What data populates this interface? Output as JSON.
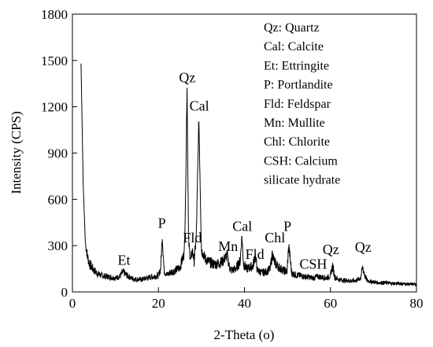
{
  "chart_data": {
    "type": "line",
    "xlabel": "2-Theta (o)",
    "ylabel": "Intensity  (CPS)",
    "xlim": [
      0,
      80
    ],
    "ylim": [
      0,
      1800
    ],
    "x_ticks": [
      "0",
      "20",
      "40",
      "60",
      "80"
    ],
    "y_ticks": [
      "0",
      "300",
      "600",
      "900",
      "1200",
      "1500",
      "1800"
    ],
    "grid": false,
    "legend_placement": "top-right",
    "legend": [
      "Qz:  Quartz",
      "Cal:  Calcite",
      "Et:  Ettringite",
      "P:  Portlandite",
      "Fld:  Feldspar",
      "Mn:  Mullite",
      "Chl:  Chlorite",
      "CSH:  Calcium",
      "silicate hydrate"
    ],
    "annotations": [
      {
        "text": "Et",
        "x": 12,
        "y": 175
      },
      {
        "text": "P",
        "x": 20.8,
        "y": 415
      },
      {
        "text": "Qz",
        "x": 26.7,
        "y": 1360
      },
      {
        "text": "Cal",
        "x": 29.5,
        "y": 1175
      },
      {
        "text": "Fld",
        "x": 27.9,
        "y": 320
      },
      {
        "text": "Mn",
        "x": 36.2,
        "y": 265
      },
      {
        "text": "Cal",
        "x": 39.5,
        "y": 395
      },
      {
        "text": "Fld",
        "x": 42.4,
        "y": 215
      },
      {
        "text": "Chl",
        "x": 47.1,
        "y": 320
      },
      {
        "text": "P",
        "x": 50,
        "y": 395
      },
      {
        "text": "CSH",
        "x": 56,
        "y": 150
      },
      {
        "text": "Qz",
        "x": 60.1,
        "y": 245
      },
      {
        "text": "Qz",
        "x": 67.6,
        "y": 260
      }
    ],
    "series": [
      {
        "x": [
          2,
          2.5,
          3,
          3.5,
          4,
          5,
          6,
          7,
          8,
          9,
          10,
          11,
          11.8,
          12.5,
          14,
          16,
          18,
          20,
          20.5,
          20.9,
          21.3,
          22,
          23,
          24,
          25,
          26,
          26.3,
          26.65,
          27,
          27.5,
          27.9,
          28.3,
          28.8,
          29.4,
          30,
          31,
          32,
          33,
          34,
          35,
          36,
          36.5,
          37,
          38,
          39,
          39.4,
          39.8,
          40.5,
          41,
          42,
          42.5,
          43,
          44,
          45,
          46,
          46.5,
          47,
          48,
          49,
          49.9,
          50.3,
          51,
          52,
          53,
          54,
          55,
          56,
          57,
          58,
          59,
          60,
          60.5,
          61,
          62,
          63,
          64,
          65,
          66,
          67,
          67.5,
          68,
          68.5,
          69,
          70,
          71,
          72,
          73,
          74,
          75,
          76,
          77,
          78,
          79,
          80
        ],
        "y": [
          1480,
          700,
          320,
          230,
          180,
          140,
          115,
          105,
          100,
          95,
          90,
          100,
          130,
          110,
          85,
          80,
          95,
          105,
          150,
          360,
          140,
          110,
          130,
          140,
          160,
          250,
          600,
          1340,
          330,
          200,
          270,
          200,
          360,
          1130,
          270,
          210,
          190,
          180,
          185,
          200,
          240,
          160,
          140,
          150,
          200,
          360,
          180,
          150,
          155,
          170,
          240,
          140,
          125,
          130,
          150,
          250,
          190,
          160,
          140,
          130,
          300,
          120,
          110,
          105,
          100,
          95,
          90,
          100,
          95,
          90,
          105,
          170,
          95,
          80,
          75,
          75,
          70,
          75,
          90,
          160,
          105,
          75,
          70,
          65,
          60,
          60,
          60,
          55,
          55,
          55,
          52,
          50,
          50,
          50
        ]
      }
    ]
  }
}
